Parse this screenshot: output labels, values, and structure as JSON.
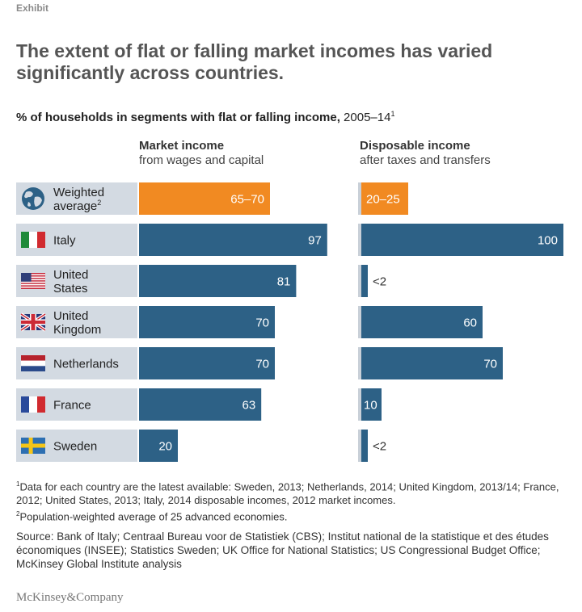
{
  "exhibit_label": "Exhibit",
  "title": "The extent of flat or falling market incomes has varied significantly across countries.",
  "subtitle": {
    "bold": "% of households in segments with flat or falling income,",
    "rest": " 2005–14",
    "sup": "1"
  },
  "columns": {
    "market": {
      "heading": "Market income",
      "sub": "from wages and capital"
    },
    "disposable": {
      "heading": "Disposable income",
      "sub": "after taxes and transfers"
    }
  },
  "colors": {
    "bar": "#2d6186",
    "highlight": "#f18a22",
    "label_bg": "#d3dae2",
    "baseline": "#c9d0d8"
  },
  "chart_data": {
    "type": "bar",
    "orientation": "horizontal",
    "categories": [
      "Weighted average",
      "Italy",
      "United States",
      "United Kingdom",
      "Netherlands",
      "France",
      "Sweden"
    ],
    "series": [
      {
        "name": "Market income",
        "values": [
          67.5,
          97,
          81,
          70,
          70,
          63,
          20
        ],
        "labels": [
          "65–70",
          "97",
          "81",
          "70",
          "70",
          "63",
          "20"
        ]
      },
      {
        "name": "Disposable income",
        "values": [
          22.5,
          100,
          2,
          60,
          70,
          10,
          2
        ],
        "labels": [
          "20–25",
          "100",
          "<2",
          "60",
          "70",
          "10",
          "<2"
        ]
      }
    ],
    "xlim": [
      0,
      100
    ]
  },
  "rows": [
    {
      "label_line1": "Weighted",
      "label_line2": "average",
      "label_sup": "2",
      "icon": "globe-icon"
    },
    {
      "label_line1": "Italy",
      "label_line2": "",
      "label_sup": "",
      "icon": "italy-flag-icon"
    },
    {
      "label_line1": "United",
      "label_line2": "States",
      "label_sup": "",
      "icon": "us-flag-icon"
    },
    {
      "label_line1": "United",
      "label_line2": "Kingdom",
      "label_sup": "",
      "icon": "uk-flag-icon"
    },
    {
      "label_line1": "Netherlands",
      "label_line2": "",
      "label_sup": "",
      "icon": "netherlands-flag-icon"
    },
    {
      "label_line1": "France",
      "label_line2": "",
      "label_sup": "",
      "icon": "france-flag-icon"
    },
    {
      "label_line1": "Sweden",
      "label_line2": "",
      "label_sup": "",
      "icon": "sweden-flag-icon"
    }
  ],
  "footnotes": {
    "note1_sup": "1",
    "note1": "Data for each country are the latest available: Sweden, 2013; Netherlands, 2014; United Kingdom, 2013/14; France, 2012; United States, 2013; Italy, 2014 disposable incomes, 2012 market incomes.",
    "note2_sup": "2",
    "note2": "Population-weighted average of 25 advanced economies."
  },
  "source": "Source: Bank of Italy; Centraal Bureau voor de Statistiek (CBS); Institut national de la statistique et des études économiques (INSEE); Statistics Sweden; UK Office for National Statistics; US Congressional Budget Office; McKinsey Global Institute analysis",
  "brand": "McKinsey&Company"
}
